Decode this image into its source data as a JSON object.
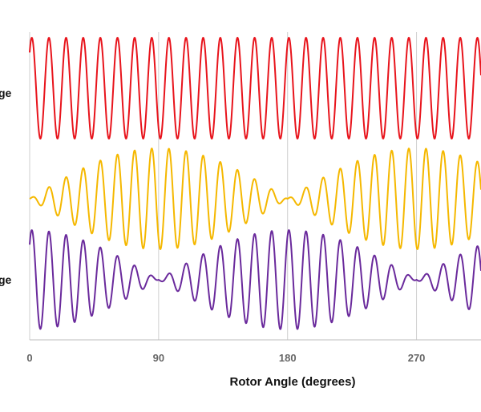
{
  "chart_data": {
    "type": "line",
    "xlabel": "Rotor Angle (degrees)",
    "xlim": [
      0,
      315
    ],
    "x_ticks": [
      0,
      90,
      180,
      270
    ],
    "x_tick_labels": [
      "0",
      "90",
      "180",
      "270"
    ],
    "grid": "vertical",
    "side_labels": [
      "ge",
      "ge"
    ],
    "series": [
      {
        "color": "#e8141c",
        "carrier_cycles_per_degree": 0.0836,
        "amplitude": 1.0,
        "envelope": "constant",
        "envelope_period_deg": 180
      },
      {
        "color": "#f5b800",
        "carrier_cycles_per_degree": 0.0836,
        "amplitude": 1.0,
        "envelope": "abs_sin",
        "envelope_period_deg": 180
      },
      {
        "color": "#6a2a9c",
        "carrier_cycles_per_degree": 0.0836,
        "amplitude": 1.0,
        "envelope": "abs_cos",
        "envelope_period_deg": 180
      }
    ]
  }
}
